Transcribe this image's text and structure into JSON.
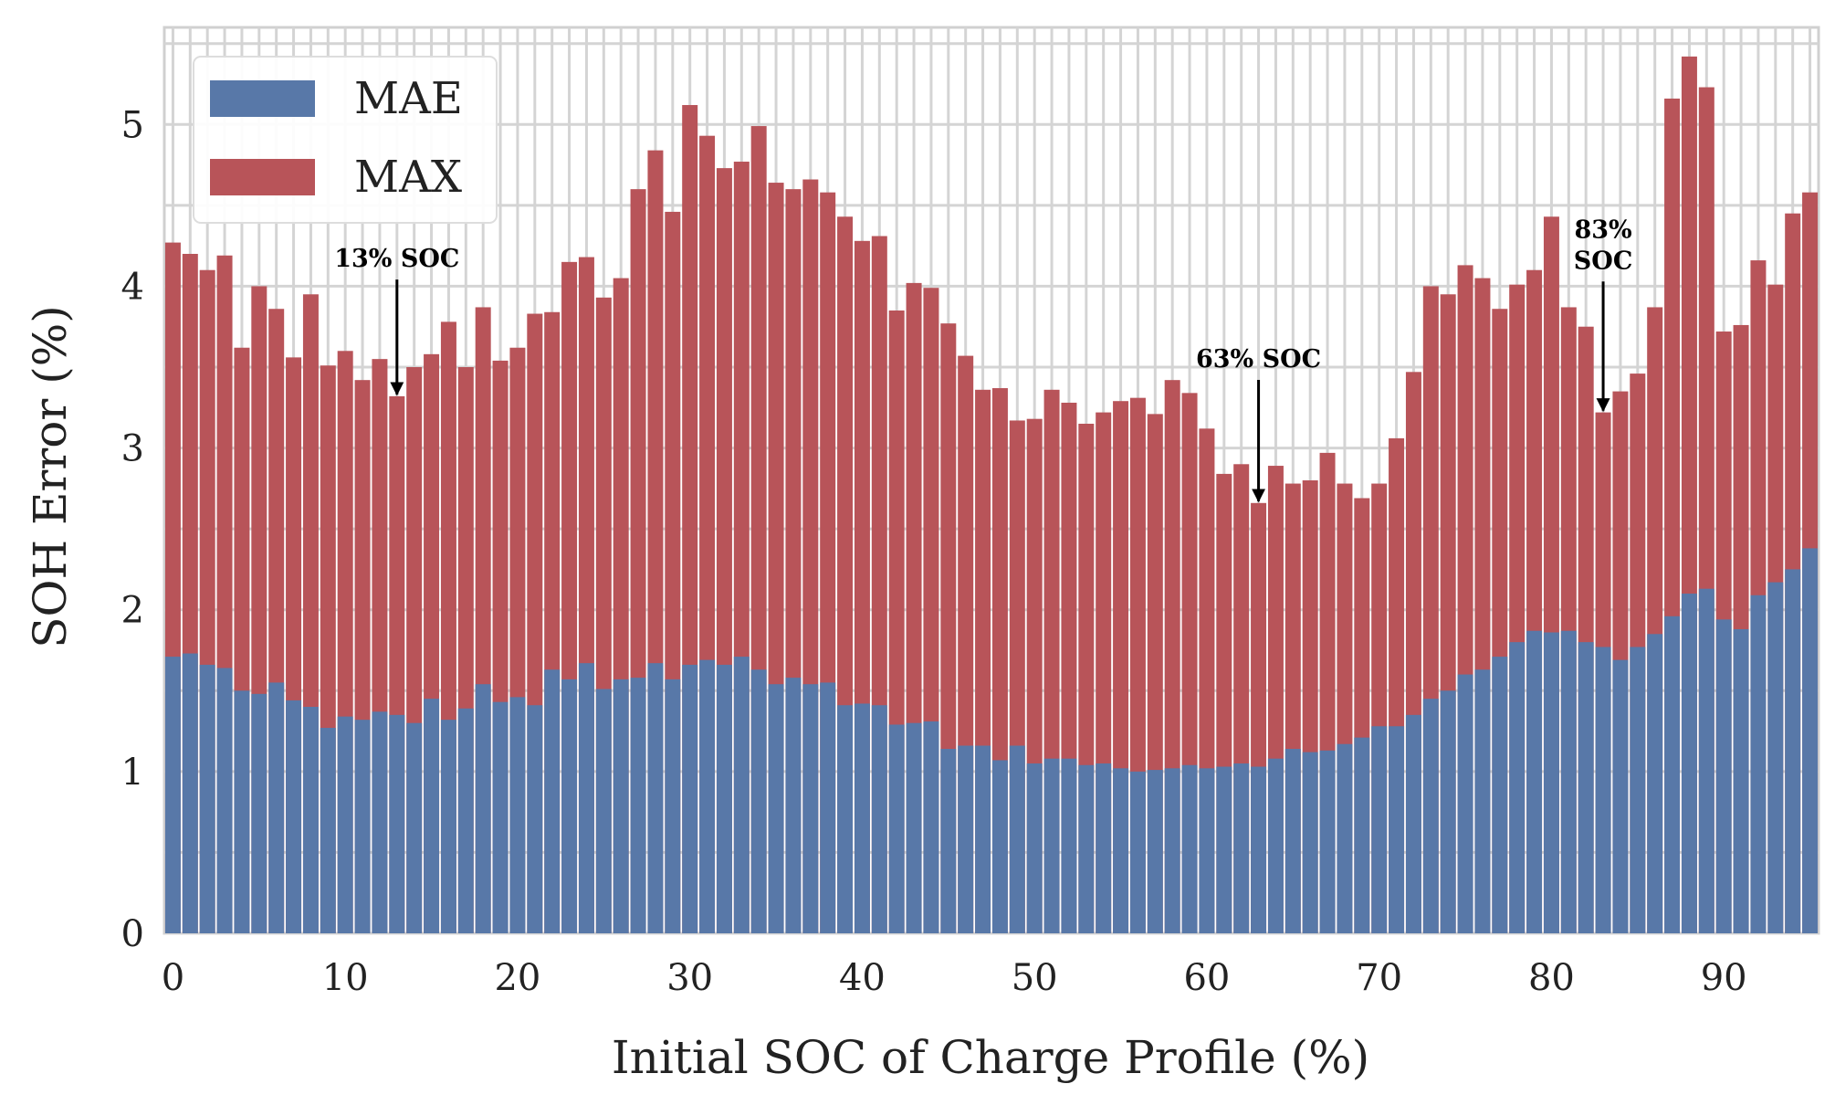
{
  "chart_data": {
    "type": "bar",
    "stacked": "overlay",
    "xlabel": "Initial SOC of Charge Profile (%)",
    "ylabel": "SOH Error (%)",
    "xlim": [
      -0.5,
      95.5
    ],
    "ylim": [
      0,
      5.6
    ],
    "xticks": [
      0,
      10,
      20,
      30,
      40,
      50,
      60,
      70,
      80,
      90
    ],
    "yticks": [
      0,
      1,
      2,
      3,
      4,
      5
    ],
    "grid": true,
    "legend_position": "top-left",
    "x": [
      0,
      1,
      2,
      3,
      4,
      5,
      6,
      7,
      8,
      9,
      10,
      11,
      12,
      13,
      14,
      15,
      16,
      17,
      18,
      19,
      20,
      21,
      22,
      23,
      24,
      25,
      26,
      27,
      28,
      29,
      30,
      31,
      32,
      33,
      34,
      35,
      36,
      37,
      38,
      39,
      40,
      41,
      42,
      43,
      44,
      45,
      46,
      47,
      48,
      49,
      50,
      51,
      52,
      53,
      54,
      55,
      56,
      57,
      58,
      59,
      60,
      61,
      62,
      63,
      64,
      65,
      66,
      67,
      68,
      69,
      70,
      71,
      72,
      73,
      74,
      75,
      76,
      77,
      78,
      79,
      80,
      81,
      82,
      83,
      84,
      85,
      86,
      87,
      88,
      89,
      90,
      91,
      92,
      93,
      94,
      95
    ],
    "series": [
      {
        "name": "MAX",
        "color": "#b85459",
        "values": [
          4.27,
          4.2,
          4.1,
          4.19,
          3.62,
          4.0,
          3.86,
          3.56,
          3.95,
          3.51,
          3.6,
          3.42,
          3.55,
          3.32,
          3.5,
          3.58,
          3.78,
          3.5,
          3.87,
          3.54,
          3.62,
          3.83,
          3.84,
          4.15,
          4.18,
          3.93,
          4.05,
          4.6,
          4.84,
          4.46,
          5.12,
          4.93,
          4.73,
          4.77,
          4.99,
          4.64,
          4.6,
          4.66,
          4.58,
          4.43,
          4.28,
          4.31,
          3.85,
          4.02,
          3.99,
          3.77,
          3.57,
          3.36,
          3.37,
          3.17,
          3.18,
          3.36,
          3.28,
          3.15,
          3.22,
          3.29,
          3.31,
          3.21,
          3.42,
          3.34,
          3.12,
          2.84,
          2.9,
          2.66,
          2.89,
          2.78,
          2.8,
          2.97,
          2.78,
          2.69,
          2.78,
          3.06,
          3.47,
          4.0,
          3.95,
          4.13,
          4.05,
          3.86,
          4.01,
          4.1,
          4.43,
          3.87,
          3.75,
          3.22,
          3.35,
          3.46,
          3.87,
          5.16,
          5.42,
          5.23,
          3.72,
          3.76,
          4.16,
          4.01,
          4.45,
          4.58
        ]
      },
      {
        "name": "MAE",
        "color": "#5878a8",
        "values": [
          1.71,
          1.73,
          1.66,
          1.64,
          1.5,
          1.48,
          1.55,
          1.44,
          1.4,
          1.27,
          1.34,
          1.32,
          1.37,
          1.35,
          1.3,
          1.45,
          1.32,
          1.39,
          1.54,
          1.43,
          1.46,
          1.41,
          1.63,
          1.57,
          1.67,
          1.51,
          1.57,
          1.58,
          1.67,
          1.57,
          1.66,
          1.69,
          1.66,
          1.71,
          1.63,
          1.54,
          1.58,
          1.54,
          1.55,
          1.41,
          1.42,
          1.41,
          1.29,
          1.3,
          1.31,
          1.14,
          1.16,
          1.16,
          1.07,
          1.16,
          1.05,
          1.08,
          1.08,
          1.04,
          1.05,
          1.02,
          1.0,
          1.01,
          1.02,
          1.04,
          1.02,
          1.03,
          1.05,
          1.03,
          1.08,
          1.14,
          1.12,
          1.13,
          1.17,
          1.21,
          1.28,
          1.28,
          1.35,
          1.45,
          1.5,
          1.6,
          1.63,
          1.71,
          1.8,
          1.87,
          1.86,
          1.87,
          1.8,
          1.77,
          1.69,
          1.77,
          1.85,
          1.96,
          2.1,
          2.13,
          1.94,
          1.88,
          2.09,
          2.17,
          2.25,
          2.38
        ]
      }
    ],
    "annotations": [
      {
        "text": "13% SOC",
        "x": 13,
        "y_tip": 3.32,
        "y_text": 4.12
      },
      {
        "text": "63% SOC",
        "x": 63,
        "y_tip": 2.66,
        "y_text": 3.5
      },
      {
        "text_lines": [
          "83%",
          "SOC"
        ],
        "x": 83,
        "y_tip": 3.22,
        "y_text": 4.3
      }
    ]
  }
}
